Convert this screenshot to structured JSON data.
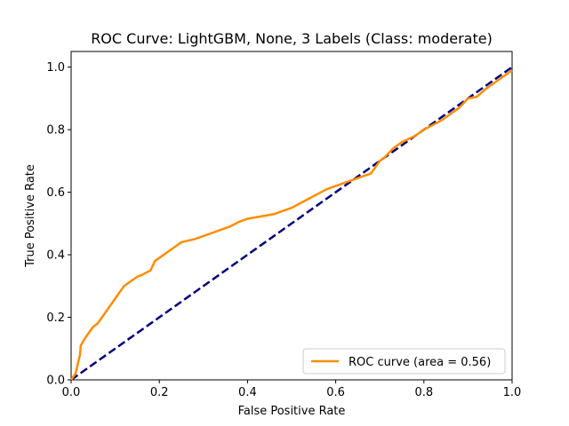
{
  "chart_data": {
    "type": "line",
    "title": "ROC Curve: LightGBM, None, 3 Labels (Class: moderate)",
    "xlabel": "False Positive Rate",
    "ylabel": "True Positive Rate",
    "xlim": [
      0.0,
      1.0
    ],
    "ylim": [
      0.0,
      1.05
    ],
    "xticks": [
      0.0,
      0.2,
      0.4,
      0.6,
      0.8,
      1.0
    ],
    "yticks": [
      0.0,
      0.2,
      0.4,
      0.6,
      0.8,
      1.0
    ],
    "xtick_labels": [
      "0.0",
      "0.2",
      "0.4",
      "0.6",
      "0.8",
      "1.0"
    ],
    "ytick_labels": [
      "0.0",
      "0.2",
      "0.4",
      "0.6",
      "0.8",
      "1.0"
    ],
    "grid": false,
    "legend_position": "bottom-right",
    "series": [
      {
        "name": "ROC curve (area = 0.56)",
        "color": "#ff8c00",
        "line_style": "solid",
        "x": [
          0.0,
          0.005,
          0.01,
          0.015,
          0.02,
          0.022,
          0.03,
          0.04,
          0.05,
          0.06,
          0.07,
          0.08,
          0.09,
          0.1,
          0.105,
          0.11,
          0.12,
          0.14,
          0.15,
          0.16,
          0.18,
          0.19,
          0.2,
          0.22,
          0.24,
          0.25,
          0.28,
          0.3,
          0.32,
          0.34,
          0.36,
          0.38,
          0.4,
          0.42,
          0.44,
          0.46,
          0.48,
          0.5,
          0.52,
          0.54,
          0.56,
          0.58,
          0.6,
          0.62,
          0.64,
          0.66,
          0.68,
          0.7,
          0.71,
          0.73,
          0.75,
          0.78,
          0.8,
          0.82,
          0.84,
          0.86,
          0.87,
          0.88,
          0.9,
          0.92,
          0.94,
          0.96,
          0.98,
          1.0
        ],
        "y": [
          0.0,
          0.01,
          0.02,
          0.05,
          0.08,
          0.11,
          0.13,
          0.15,
          0.17,
          0.18,
          0.2,
          0.22,
          0.24,
          0.26,
          0.27,
          0.28,
          0.3,
          0.32,
          0.33,
          0.335,
          0.35,
          0.38,
          0.39,
          0.41,
          0.43,
          0.44,
          0.45,
          0.46,
          0.47,
          0.48,
          0.49,
          0.505,
          0.515,
          0.52,
          0.525,
          0.53,
          0.54,
          0.55,
          0.565,
          0.58,
          0.595,
          0.61,
          0.62,
          0.63,
          0.64,
          0.65,
          0.66,
          0.7,
          0.71,
          0.74,
          0.76,
          0.78,
          0.8,
          0.815,
          0.83,
          0.85,
          0.86,
          0.87,
          0.9,
          0.905,
          0.93,
          0.95,
          0.97,
          0.99
        ]
      },
      {
        "name": "",
        "color": "#000080",
        "line_style": "dashed",
        "x": [
          0.0,
          1.0
        ],
        "y": [
          0.0,
          1.0
        ]
      }
    ],
    "legend_entries": [
      "ROC curve (area = 0.56)"
    ]
  }
}
